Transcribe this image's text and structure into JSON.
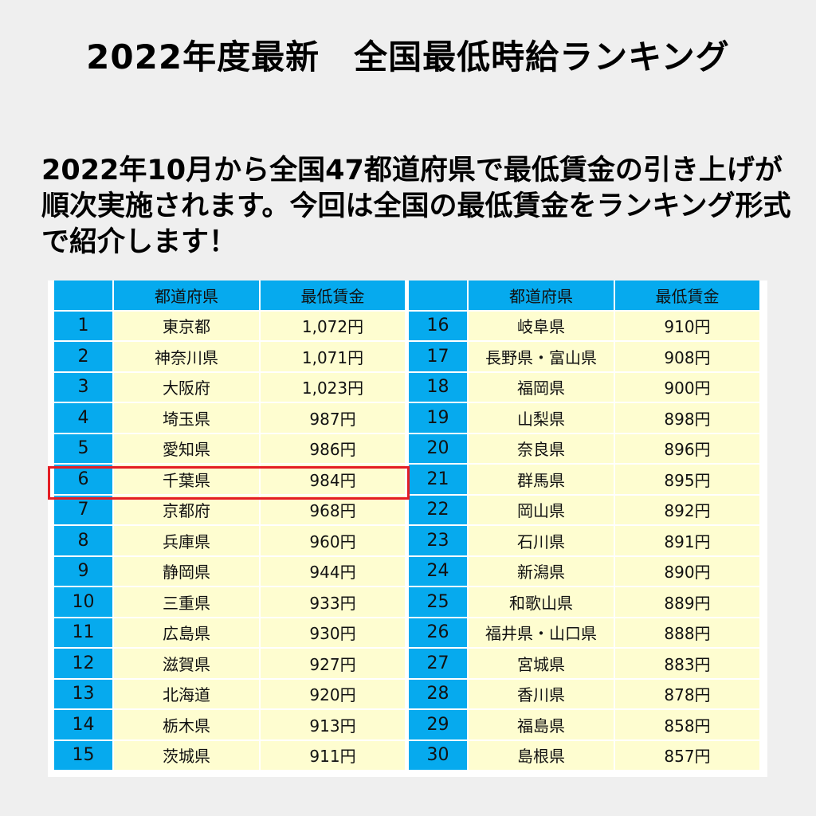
{
  "title": "2022年度最新　全国最低時給ランキング",
  "intro": [
    "2022年10月から全国47都道府県で最低賃金の引き上げが",
    "順次実施されます。今回は全国の最低賃金をランキング形式",
    "で紹介します！"
  ],
  "table": {
    "headers": {
      "rank": "",
      "prefecture": "都道府県",
      "wage": "最低賃金"
    },
    "left": [
      {
        "rank": "1",
        "prefecture": "東京都",
        "wage": "1,072円"
      },
      {
        "rank": "2",
        "prefecture": "神奈川県",
        "wage": "1,071円"
      },
      {
        "rank": "3",
        "prefecture": "大阪府",
        "wage": "1,023円"
      },
      {
        "rank": "4",
        "prefecture": "埼玉県",
        "wage": "987円"
      },
      {
        "rank": "5",
        "prefecture": "愛知県",
        "wage": "986円"
      },
      {
        "rank": "6",
        "prefecture": "千葉県",
        "wage": "984円"
      },
      {
        "rank": "7",
        "prefecture": "京都府",
        "wage": "968円"
      },
      {
        "rank": "8",
        "prefecture": "兵庫県",
        "wage": "960円"
      },
      {
        "rank": "9",
        "prefecture": "静岡県",
        "wage": "944円"
      },
      {
        "rank": "10",
        "prefecture": "三重県",
        "wage": "933円"
      },
      {
        "rank": "11",
        "prefecture": "広島県",
        "wage": "930円"
      },
      {
        "rank": "12",
        "prefecture": "滋賀県",
        "wage": "927円"
      },
      {
        "rank": "13",
        "prefecture": "北海道",
        "wage": "920円"
      },
      {
        "rank": "14",
        "prefecture": "栃木県",
        "wage": "913円"
      },
      {
        "rank": "15",
        "prefecture": "茨城県",
        "wage": "911円"
      }
    ],
    "right": [
      {
        "rank": "16",
        "prefecture": "岐阜県",
        "wage": "910円"
      },
      {
        "rank": "17",
        "prefecture": "長野県・富山県",
        "wage": "908円"
      },
      {
        "rank": "18",
        "prefecture": "福岡県",
        "wage": "900円"
      },
      {
        "rank": "19",
        "prefecture": "山梨県",
        "wage": "898円"
      },
      {
        "rank": "20",
        "prefecture": "奈良県",
        "wage": "896円"
      },
      {
        "rank": "21",
        "prefecture": "群馬県",
        "wage": "895円"
      },
      {
        "rank": "22",
        "prefecture": "岡山県",
        "wage": "892円"
      },
      {
        "rank": "23",
        "prefecture": "石川県",
        "wage": "891円"
      },
      {
        "rank": "24",
        "prefecture": "新潟県",
        "wage": "890円"
      },
      {
        "rank": "25",
        "prefecture": "和歌山県",
        "wage": "889円"
      },
      {
        "rank": "26",
        "prefecture": "福井県・山口県",
        "wage": "888円"
      },
      {
        "rank": "27",
        "prefecture": "宮城県",
        "wage": "883円"
      },
      {
        "rank": "28",
        "prefecture": "香川県",
        "wage": "878円"
      },
      {
        "rank": "29",
        "prefecture": "福島県",
        "wage": "858円"
      },
      {
        "rank": "30",
        "prefecture": "島根県",
        "wage": "857円"
      }
    ]
  },
  "colors": {
    "background": "#efefef",
    "header_blue": "#06aaee",
    "cell_yellow": "#fefdd0",
    "highlight_red": "#e41d24"
  },
  "highlighted_rank": "6"
}
